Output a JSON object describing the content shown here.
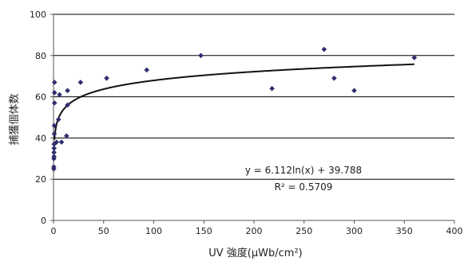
{
  "chart_data": {
    "type": "scatter",
    "title": "",
    "xlabel": "UV 強度(μWb/cm²)",
    "ylabel": "捕獲個体数",
    "xlim": [
      0,
      400
    ],
    "ylim": [
      0,
      100
    ],
    "x_ticks": [
      0,
      50,
      100,
      150,
      200,
      250,
      300,
      350,
      400
    ],
    "y_ticks": [
      0,
      20,
      40,
      60,
      80,
      100
    ],
    "grid": "horizontal",
    "colors": {
      "points": "#2e2e6e",
      "trendline": "#111111",
      "gridline": "#000000",
      "axis": "#555555"
    },
    "points": [
      {
        "x": 0.3,
        "y": 25
      },
      {
        "x": 0.3,
        "y": 26
      },
      {
        "x": 0.4,
        "y": 30
      },
      {
        "x": 0.5,
        "y": 31
      },
      {
        "x": 0.5,
        "y": 33
      },
      {
        "x": 0.6,
        "y": 35
      },
      {
        "x": 0.6,
        "y": 37
      },
      {
        "x": 0.8,
        "y": 42
      },
      {
        "x": 0.8,
        "y": 46
      },
      {
        "x": 1,
        "y": 57
      },
      {
        "x": 1,
        "y": 62
      },
      {
        "x": 1,
        "y": 67
      },
      {
        "x": 3,
        "y": 38
      },
      {
        "x": 5,
        "y": 49
      },
      {
        "x": 6,
        "y": 61
      },
      {
        "x": 8,
        "y": 38
      },
      {
        "x": 13,
        "y": 41
      },
      {
        "x": 14,
        "y": 56
      },
      {
        "x": 14,
        "y": 63
      },
      {
        "x": 27,
        "y": 67
      },
      {
        "x": 53,
        "y": 69
      },
      {
        "x": 93,
        "y": 73
      },
      {
        "x": 147,
        "y": 80
      },
      {
        "x": 218,
        "y": 64
      },
      {
        "x": 270,
        "y": 83
      },
      {
        "x": 280,
        "y": 69
      },
      {
        "x": 300,
        "y": 63
      },
      {
        "x": 360,
        "y": 79
      }
    ],
    "trendline": {
      "type": "logarithmic",
      "a": 6.112,
      "b": 39.788,
      "x_range": [
        0.9,
        360
      ]
    },
    "annotations": [
      {
        "text": "y = 6.112ln(x) + 39.788"
      },
      {
        "text": "R² = 0.5709"
      }
    ]
  }
}
